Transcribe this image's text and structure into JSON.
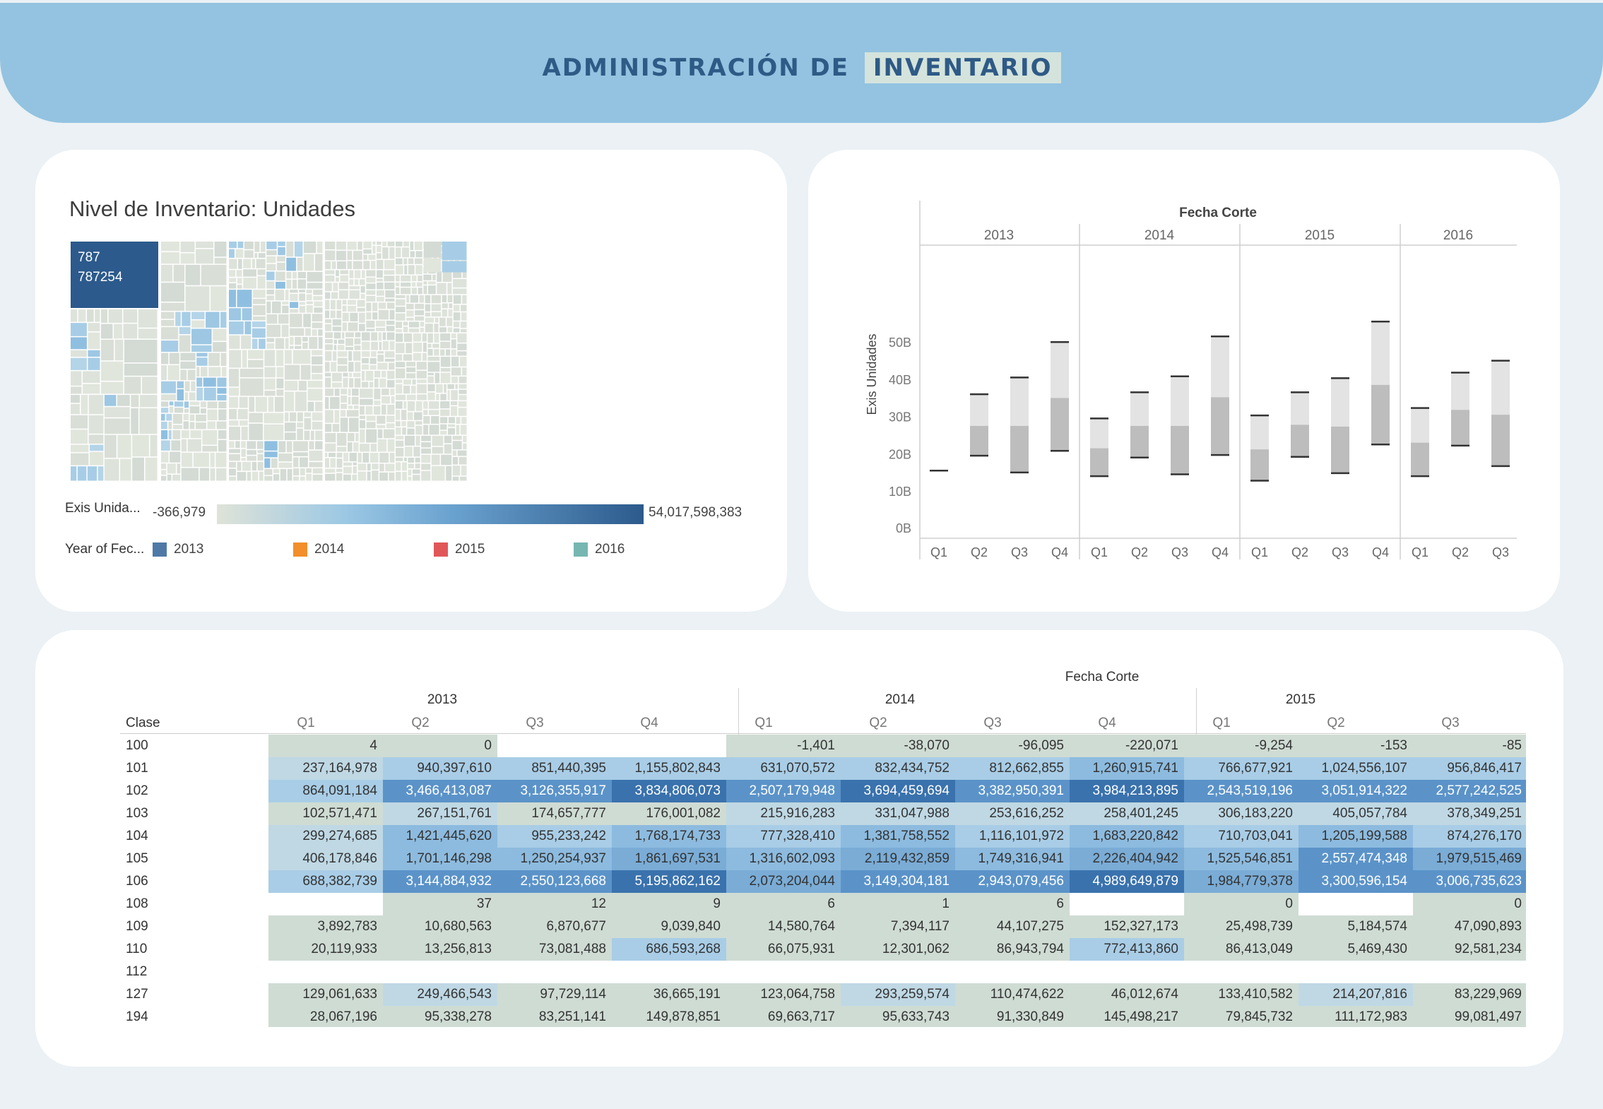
{
  "header": {
    "title_part1": "ADMINISTRACIÓN DE",
    "title_part2": "INVENTARIO"
  },
  "treemap": {
    "title": "Nivel de Inventario: Unidades",
    "top_tile_line1": "787",
    "top_tile_line2": "787254",
    "color_legend_label": "Exis Unida...",
    "color_min": "-366,979",
    "color_max": "54,017,598,383",
    "year_legend_label": "Year of Fec...",
    "years": [
      {
        "label": "2013",
        "color": "#4e79a7"
      },
      {
        "label": "2014",
        "color": "#f28e2b"
      },
      {
        "label": "2015",
        "color": "#e15759"
      },
      {
        "label": "2016",
        "color": "#76b7b2"
      }
    ]
  },
  "chart_data": {
    "type": "box",
    "title": "Fecha Corte",
    "ylabel": "Exis Unidades",
    "yticks": [
      "0B",
      "10B",
      "20B",
      "30B",
      "40B",
      "50B"
    ],
    "ylim": [
      0,
      58
    ],
    "years": [
      "2013",
      "2014",
      "2015",
      "2016"
    ],
    "quarters": [
      [
        "Q1",
        "Q2",
        "Q3",
        "Q4"
      ],
      [
        "Q1",
        "Q2",
        "Q3",
        "Q4"
      ],
      [
        "Q1",
        "Q2",
        "Q3",
        "Q4"
      ],
      [
        "Q1",
        "Q2",
        "Q3"
      ]
    ],
    "boxes": [
      [
        [
          15.5,
          15.6,
          15.7
        ],
        [
          19.5,
          27.5,
          36.0
        ],
        [
          15.0,
          27.5,
          40.5
        ],
        [
          20.8,
          35.0,
          50.0
        ]
      ],
      [
        [
          14.0,
          21.5,
          29.5
        ],
        [
          19.0,
          27.5,
          36.5
        ],
        [
          14.5,
          27.5,
          40.8
        ],
        [
          19.7,
          35.2,
          51.5
        ]
      ],
      [
        [
          12.8,
          21.2,
          30.3
        ],
        [
          19.2,
          27.8,
          36.5
        ],
        [
          14.8,
          27.3,
          40.3
        ],
        [
          22.5,
          38.5,
          55.5
        ]
      ],
      [
        [
          14.0,
          23.0,
          32.3
        ],
        [
          22.2,
          31.8,
          41.8
        ],
        [
          16.7,
          30.5,
          45.0
        ]
      ]
    ]
  },
  "table": {
    "title": "Fecha Corte",
    "row_header": "Clase",
    "years": [
      "2013",
      "2014",
      "2015"
    ],
    "quarters": [
      "Q1",
      "Q2",
      "Q3",
      "Q4",
      "Q1",
      "Q2",
      "Q3",
      "Q4",
      "Q1",
      "Q2",
      "Q3"
    ],
    "rows": [
      {
        "clase": "100",
        "cells": [
          "4",
          "0",
          "",
          "",
          "-1,401",
          "-38,070",
          "-96,095",
          "-220,071",
          "-9,254",
          "-153",
          "-85"
        ]
      },
      {
        "clase": "101",
        "cells": [
          "237,164,978",
          "940,397,610",
          "851,440,395",
          "1,155,802,843",
          "631,070,572",
          "832,434,752",
          "812,662,855",
          "1,260,915,741",
          "766,677,921",
          "1,024,556,107",
          "956,846,417"
        ]
      },
      {
        "clase": "102",
        "cells": [
          "864,091,184",
          "3,466,413,087",
          "3,126,355,917",
          "3,834,806,073",
          "2,507,179,948",
          "3,694,459,694",
          "3,382,950,391",
          "3,984,213,895",
          "2,543,519,196",
          "3,051,914,322",
          "2,577,242,525"
        ]
      },
      {
        "clase": "103",
        "cells": [
          "102,571,471",
          "267,151,761",
          "174,657,777",
          "176,001,082",
          "215,916,283",
          "331,047,988",
          "253,616,252",
          "258,401,245",
          "306,183,220",
          "405,057,784",
          "378,349,251"
        ]
      },
      {
        "clase": "104",
        "cells": [
          "299,274,685",
          "1,421,445,620",
          "955,233,242",
          "1,768,174,733",
          "777,328,410",
          "1,381,758,552",
          "1,116,101,972",
          "1,683,220,842",
          "710,703,041",
          "1,205,199,588",
          "874,276,170"
        ]
      },
      {
        "clase": "105",
        "cells": [
          "406,178,846",
          "1,701,146,298",
          "1,250,254,937",
          "1,861,697,531",
          "1,316,602,093",
          "2,119,432,859",
          "1,749,316,941",
          "2,226,404,942",
          "1,525,546,851",
          "2,557,474,348",
          "1,979,515,469"
        ]
      },
      {
        "clase": "106",
        "cells": [
          "688,382,739",
          "3,144,884,932",
          "2,550,123,668",
          "5,195,862,162",
          "2,073,204,044",
          "3,149,304,181",
          "2,943,079,456",
          "4,989,649,879",
          "1,984,779,378",
          "3,300,596,154",
          "3,006,735,623"
        ]
      },
      {
        "clase": "108",
        "cells": [
          "",
          "37",
          "12",
          "9",
          "6",
          "1",
          "6",
          "",
          "0",
          "",
          "0"
        ]
      },
      {
        "clase": "109",
        "cells": [
          "3,892,783",
          "10,680,563",
          "6,870,677",
          "9,039,840",
          "14,580,764",
          "7,394,117",
          "44,107,275",
          "152,327,173",
          "25,498,739",
          "5,184,574",
          "47,090,893"
        ]
      },
      {
        "clase": "110",
        "cells": [
          "20,119,933",
          "13,256,813",
          "73,081,488",
          "686,593,268",
          "66,075,931",
          "12,301,062",
          "86,943,794",
          "772,413,860",
          "86,413,049",
          "5,469,430",
          "92,581,234"
        ]
      },
      {
        "clase": "112",
        "cells": [
          "",
          "",
          "",
          "",
          "",
          "",
          "",
          "",
          "",
          "",
          ""
        ]
      },
      {
        "clase": "127",
        "cells": [
          "129,061,633",
          "249,466,543",
          "97,729,114",
          "36,665,191",
          "123,064,758",
          "293,259,574",
          "110,474,622",
          "46,012,674",
          "133,410,582",
          "214,207,816",
          "83,229,969"
        ]
      },
      {
        "clase": "194",
        "cells": [
          "28,067,196",
          "95,338,278",
          "83,251,141",
          "149,878,851",
          "69,663,717",
          "95,633,743",
          "91,330,849",
          "145,498,217",
          "79,845,732",
          "111,172,983",
          "99,081,497"
        ]
      }
    ]
  }
}
